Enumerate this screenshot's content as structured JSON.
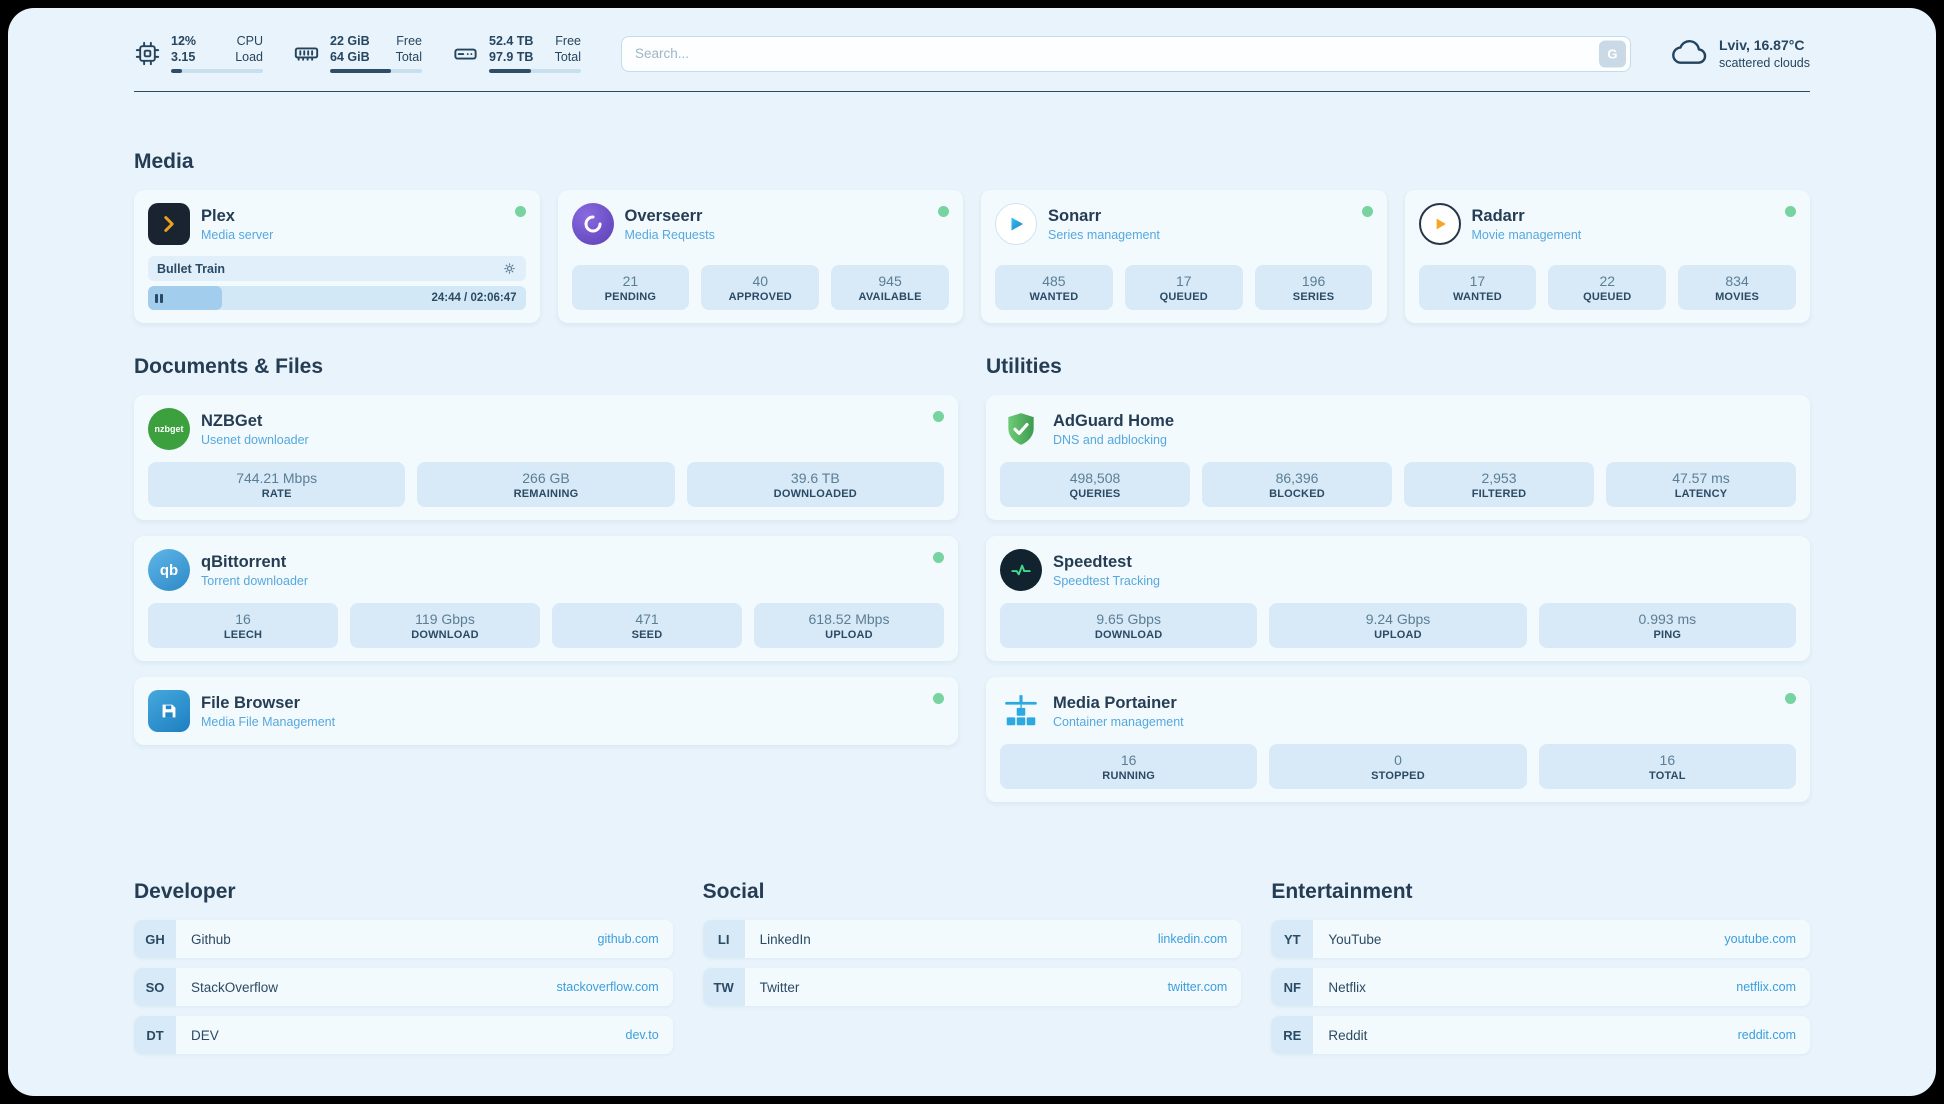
{
  "header": {
    "cpu": {
      "value_top": "12%",
      "label_top": "CPU",
      "value_bottom": "3.15",
      "label_bottom": "Load",
      "progress_pct": 12
    },
    "ram": {
      "value_top": "22 GiB",
      "label_top": "Free",
      "value_bottom": "64 GiB",
      "label_bottom": "Total",
      "progress_pct": 66
    },
    "disk": {
      "value_top": "52.4 TB",
      "label_top": "Free",
      "value_bottom": "97.9 TB",
      "label_bottom": "Total",
      "progress_pct": 46
    },
    "search": {
      "placeholder": "Search...",
      "button_label": "G"
    },
    "weather": {
      "location": "Lviv, 16.87°C",
      "condition": "scattered clouds"
    }
  },
  "sections": {
    "media": "Media",
    "documents": "Documents & Files",
    "utilities": "Utilities",
    "developer": "Developer",
    "social": "Social",
    "entertainment": "Entertainment"
  },
  "media_apps": {
    "plex": {
      "name": "Plex",
      "subtitle": "Media server",
      "now_playing": "Bullet Train",
      "time": "24:44 / 02:06:47",
      "progress_pct": 19.5
    },
    "overseerr": {
      "name": "Overseerr",
      "subtitle": "Media Requests",
      "stats": [
        {
          "value": "21",
          "label": "PENDING"
        },
        {
          "value": "40",
          "label": "APPROVED"
        },
        {
          "value": "945",
          "label": "AVAILABLE"
        }
      ]
    },
    "sonarr": {
      "name": "Sonarr",
      "subtitle": "Series management",
      "stats": [
        {
          "value": "485",
          "label": "WANTED"
        },
        {
          "value": "17",
          "label": "QUEUED"
        },
        {
          "value": "196",
          "label": "SERIES"
        }
      ]
    },
    "radarr": {
      "name": "Radarr",
      "subtitle": "Movie management",
      "stats": [
        {
          "value": "17",
          "label": "WANTED"
        },
        {
          "value": "22",
          "label": "QUEUED"
        },
        {
          "value": "834",
          "label": "MOVIES"
        }
      ]
    }
  },
  "document_apps": {
    "nzbget": {
      "name": "NZBGet",
      "subtitle": "Usenet downloader",
      "icon_text": "nzbget",
      "stats": [
        {
          "value": "744.21 Mbps",
          "label": "RATE"
        },
        {
          "value": "266 GB",
          "label": "REMAINING"
        },
        {
          "value": "39.6 TB",
          "label": "DOWNLOADED"
        }
      ]
    },
    "qbittorrent": {
      "name": "qBittorrent",
      "subtitle": "Torrent downloader",
      "icon_text": "qb",
      "stats": [
        {
          "value": "16",
          "label": "LEECH"
        },
        {
          "value": "119 Gbps",
          "label": "DOWNLOAD"
        },
        {
          "value": "471",
          "label": "SEED"
        },
        {
          "value": "618.52 Mbps",
          "label": "UPLOAD"
        }
      ]
    },
    "filebrowser": {
      "name": "File Browser",
      "subtitle": "Media File Management"
    }
  },
  "utility_apps": {
    "adguard": {
      "name": "AdGuard Home",
      "subtitle": "DNS and adblocking",
      "stats": [
        {
          "value": "498,508",
          "label": "QUERIES"
        },
        {
          "value": "86,396",
          "label": "BLOCKED"
        },
        {
          "value": "2,953",
          "label": "FILTERED"
        },
        {
          "value": "47.57 ms",
          "label": "LATENCY"
        }
      ]
    },
    "speedtest": {
      "name": "Speedtest",
      "subtitle": "Speedtest Tracking",
      "stats": [
        {
          "value": "9.65 Gbps",
          "label": "DOWNLOAD"
        },
        {
          "value": "9.24 Gbps",
          "label": "UPLOAD"
        },
        {
          "value": "0.993 ms",
          "label": "PING"
        }
      ]
    },
    "portainer": {
      "name": "Media Portainer",
      "subtitle": "Container management",
      "stats": [
        {
          "value": "16",
          "label": "RUNNING"
        },
        {
          "value": "0",
          "label": "STOPPED"
        },
        {
          "value": "16",
          "label": "TOTAL"
        }
      ]
    }
  },
  "bookmarks": {
    "developer": [
      {
        "abbr": "GH",
        "name": "Github",
        "url": "github.com"
      },
      {
        "abbr": "SO",
        "name": "StackOverflow",
        "url": "stackoverflow.com"
      },
      {
        "abbr": "DT",
        "name": "DEV",
        "url": "dev.to"
      }
    ],
    "social": [
      {
        "abbr": "LI",
        "name": "LinkedIn",
        "url": "linkedin.com"
      },
      {
        "abbr": "TW",
        "name": "Twitter",
        "url": "twitter.com"
      }
    ],
    "entertainment": [
      {
        "abbr": "YT",
        "name": "YouTube",
        "url": "youtube.com"
      },
      {
        "abbr": "NF",
        "name": "Netflix",
        "url": "netflix.com"
      },
      {
        "abbr": "RE",
        "name": "Reddit",
        "url": "reddit.com"
      }
    ]
  },
  "colors": {
    "background": "#e8f3fb",
    "card": "#f3fafe",
    "stat_box": "#d8eaf8",
    "text_primary": "#2b4a63",
    "accent_link": "#3b9edb",
    "subtitle": "#55a8de",
    "status_online": "#77d39f",
    "plex_amber": "#e8a21f"
  },
  "icons": {
    "cpu": "chip-outline",
    "ram": "memory-outline",
    "disk": "drive-outline",
    "weather": "cloud-outline",
    "gear": "gear",
    "pause": "pause-bars",
    "status": "green-dot"
  }
}
